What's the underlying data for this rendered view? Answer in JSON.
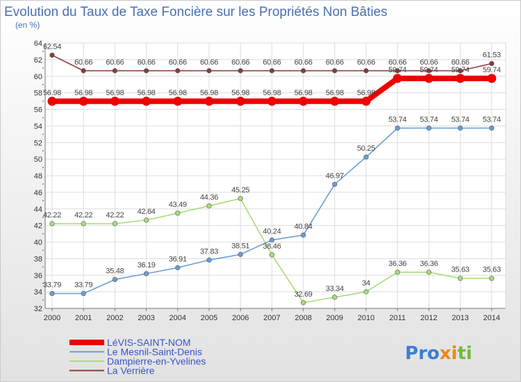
{
  "chart_data": {
    "type": "line",
    "title": "Evolution du Taux de Taxe Foncière sur les Propriétés Non Bâties",
    "ylabel": "(en %)",
    "xlabel": "",
    "ylim": [
      32,
      64
    ],
    "yticks": [
      32,
      34,
      36,
      38,
      40,
      42,
      44,
      46,
      48,
      50,
      52,
      54,
      56,
      58,
      60,
      62,
      64
    ],
    "x": [
      2000,
      2001,
      2002,
      2003,
      2004,
      2005,
      2006,
      2007,
      2008,
      2009,
      2010,
      2011,
      2012,
      2013,
      2014
    ],
    "grid": true,
    "legend_position": "bottom-left",
    "series": [
      {
        "name": "LéVIS-SAINT-NOM",
        "color": "#ee0000",
        "values": [
          56.98,
          56.98,
          56.98,
          56.98,
          56.98,
          56.98,
          56.98,
          56.98,
          56.98,
          56.98,
          56.98,
          59.74,
          59.74,
          59.74,
          59.74
        ],
        "labels": [
          "56.98",
          "56.98",
          "56.98",
          "56.98",
          "56.98",
          "56.98",
          "56.98",
          "56.98",
          "56.98",
          "56.98",
          "56.98",
          "59.74",
          "59.74",
          "59.74",
          "59.74"
        ]
      },
      {
        "name": "Le Mesnil-Saint-Denis",
        "color": "#6a9fd2",
        "values": [
          33.79,
          33.79,
          35.48,
          36.19,
          36.91,
          37.83,
          38.51,
          40.24,
          40.84,
          46.97,
          50.25,
          53.74,
          53.74,
          53.74,
          53.74
        ],
        "labels": [
          "33.79",
          "33.79",
          "35.48",
          "36.19",
          "36.91",
          "37.83",
          "38.51",
          "40.24",
          "40.84",
          "46.97",
          "50.25",
          "53.74",
          "53.74",
          "53.74",
          "53.74"
        ]
      },
      {
        "name": "Dampierre-en-Yvelines",
        "color": "#a8dc78",
        "values": [
          42.22,
          42.22,
          42.22,
          42.64,
          43.49,
          44.36,
          45.25,
          38.46,
          32.69,
          33.34,
          34,
          36.36,
          36.36,
          35.63,
          35.63
        ],
        "labels": [
          "42.22",
          "42.22",
          "42.22",
          "42.64",
          "43.49",
          "44.36",
          "45.25",
          "38.46",
          "32.69",
          "33.34",
          "34",
          "36.36",
          "36.36",
          "35.63",
          "35.63"
        ]
      },
      {
        "name": "La Verrière",
        "color": "#8b3a3a",
        "values": [
          62.54,
          60.66,
          60.66,
          60.66,
          60.66,
          60.66,
          60.66,
          60.66,
          60.66,
          60.66,
          60.66,
          60.66,
          60.66,
          60.66,
          61.53
        ],
        "labels": [
          "62.54",
          "60.66",
          "60.66",
          "60.66",
          "60.66",
          "60.66",
          "60.66",
          "60.66",
          "60.66",
          "60.66",
          "60.66",
          "60.66",
          "60.66",
          "60.66",
          "61.53"
        ]
      }
    ]
  },
  "logo": {
    "text": "Proxiti"
  }
}
